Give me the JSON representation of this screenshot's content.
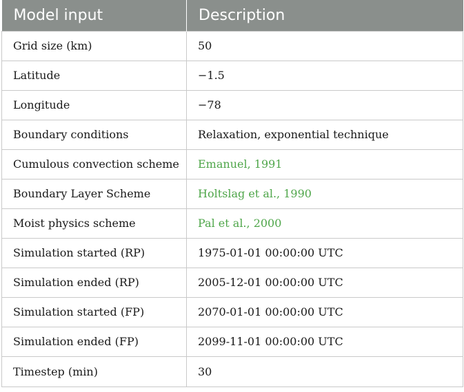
{
  "table": {
    "headers": [
      "Model input",
      "Description"
    ],
    "link_color": "#4fa64a",
    "header_bg": "#8a8f8c",
    "rows": [
      {
        "input": "Grid size (km)",
        "description": "50",
        "is_ref": false
      },
      {
        "input": "Latitude",
        "description": "−1.5",
        "is_ref": false
      },
      {
        "input": "Longitude",
        "description": "−78",
        "is_ref": false
      },
      {
        "input": "Boundary conditions",
        "description": "Relaxation, exponential technique",
        "is_ref": false
      },
      {
        "input": "Cumulous convection scheme",
        "description": "Emanuel, 1991",
        "is_ref": true
      },
      {
        "input": "Boundary Layer Scheme",
        "description": "Holtslag et al., 1990",
        "is_ref": true
      },
      {
        "input": "Moist physics scheme",
        "description": "Pal et al., 2000",
        "is_ref": true
      },
      {
        "input": "Simulation started (RP)",
        "description": "1975-01-01 00:00:00 UTC",
        "is_ref": false
      },
      {
        "input": "Simulation ended (RP)",
        "description": "2005-12-01 00:00:00 UTC",
        "is_ref": false
      },
      {
        "input": "Simulation started (FP)",
        "description": "2070-01-01 00:00:00 UTC",
        "is_ref": false
      },
      {
        "input": "Simulation ended (FP)",
        "description": "2099-11-01 00:00:00 UTC",
        "is_ref": false
      },
      {
        "input": "Timestep (min)",
        "description": "30",
        "is_ref": false
      }
    ]
  }
}
